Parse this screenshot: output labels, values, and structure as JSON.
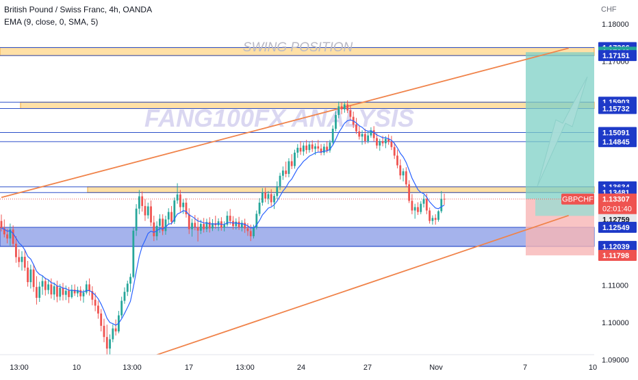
{
  "header": {
    "title": "British Pound / Swiss Franc, 4h, OANDA",
    "indicator": "EMA (9, close, 0, SMA, 5)"
  },
  "watermark": {
    "swing": "SWING POSITION",
    "brand": "FANG100FX ANALYSIS"
  },
  "colors": {
    "candle_up": "#26a69a",
    "candle_down": "#ef5350",
    "ema": "#2962ff",
    "channel": "#f0834a",
    "zone_fill": "#ffe0a6",
    "zone_border": "#f0b14f",
    "level_line": "#2a4ec9",
    "support_fill": "#5b74dd",
    "profit_fill": "#7dd0c5",
    "loss_fill": "#f7b5b5",
    "label_blue": "#1e3ac8",
    "label_green": "#26a69a",
    "label_red": "#ef5350",
    "watermark": "#c5c3e6"
  },
  "chart_data": {
    "type": "candlestick",
    "symbol": "GBPCHF",
    "timeframe": "4h",
    "y_axis": {
      "unit": "CHF",
      "range": [
        1.0855,
        1.1864
      ],
      "ticks": [
        "1.18000",
        "1.17000",
        "1.11000",
        "1.10000",
        "1.09000"
      ]
    },
    "x_axis": {
      "ticks": [
        "13:00",
        "10",
        "13:00",
        "17",
        "13:00",
        "24",
        "27",
        "Nov",
        "7",
        "10"
      ]
    },
    "levels": [
      {
        "value": 1.17366,
        "label": "1.17366",
        "style": "blue"
      },
      {
        "value": 1.17242,
        "label": "1.17242",
        "style": "green"
      },
      {
        "value": 1.17151,
        "label": "1.17151",
        "style": "blue"
      },
      {
        "value": 1.15903,
        "label": "1.15903",
        "style": "blue"
      },
      {
        "value": 1.15732,
        "label": "1.15732",
        "style": "blue"
      },
      {
        "value": 1.15091,
        "label": "1.15091",
        "style": "blue"
      },
      {
        "value": 1.14845,
        "label": "1.14845",
        "style": "blue"
      },
      {
        "value": 1.13634,
        "label": "1.13634",
        "style": "blue"
      },
      {
        "value": 1.13481,
        "label": "1.13481",
        "style": "blue"
      },
      {
        "value": 1.12759,
        "label": "1.12759",
        "style": "grey"
      },
      {
        "value": 1.12549,
        "label": "1.12549",
        "style": "blue"
      },
      {
        "value": 1.12039,
        "label": "1.12039",
        "style": "blue"
      },
      {
        "value": 1.11798,
        "label": "1.11798",
        "style": "red"
      }
    ],
    "current_price": {
      "symbol": "GBPCHF",
      "value": 1.13307,
      "label": "1.13307",
      "countdown": "02:01:40"
    },
    "zones": [
      {
        "type": "resistance",
        "from": 1.17151,
        "to": 1.17366
      },
      {
        "type": "resistance",
        "from": 1.15732,
        "to": 1.15903
      },
      {
        "type": "resistance",
        "from": 1.13481,
        "to": 1.13634
      },
      {
        "type": "support",
        "from": 1.12039,
        "to": 1.12549
      }
    ],
    "trade": {
      "direction": "long",
      "entry": 1.13307,
      "target": 1.17242,
      "stop": 1.11798
    },
    "channel": {
      "upper": {
        "from_bar": 0,
        "from_value": 1.1335,
        "to_bar": 178,
        "to_value": 1.1724
      },
      "lower": {
        "from_bar": 26,
        "from_value": 1.0855,
        "to_bar": 178,
        "to_value": 1.1272
      }
    },
    "candles": [
      [
        1.1272,
        1.1289,
        1.1244,
        1.1253
      ],
      [
        1.1253,
        1.1276,
        1.1228,
        1.1236
      ],
      [
        1.1236,
        1.125,
        1.1212,
        1.1225
      ],
      [
        1.1225,
        1.1265,
        1.1206,
        1.1249
      ],
      [
        1.1249,
        1.126,
        1.1202,
        1.1211
      ],
      [
        1.1211,
        1.1231,
        1.116,
        1.1175
      ],
      [
        1.1175,
        1.1196,
        1.1148,
        1.1162
      ],
      [
        1.1162,
        1.1191,
        1.1139,
        1.1176
      ],
      [
        1.1176,
        1.1195,
        1.1138,
        1.1147
      ],
      [
        1.1147,
        1.1165,
        1.1096,
        1.1108
      ],
      [
        1.1108,
        1.1155,
        1.1091,
        1.1142
      ],
      [
        1.1142,
        1.1156,
        1.1082,
        1.1095
      ],
      [
        1.1095,
        1.1124,
        1.1048,
        1.1066
      ],
      [
        1.1066,
        1.1109,
        1.1055,
        1.1096
      ],
      [
        1.1096,
        1.1126,
        1.1074,
        1.1111
      ],
      [
        1.1111,
        1.112,
        1.1072,
        1.1087
      ],
      [
        1.1087,
        1.1113,
        1.1076,
        1.1102
      ],
      [
        1.1102,
        1.1118,
        1.1064,
        1.1075
      ],
      [
        1.1075,
        1.1107,
        1.106,
        1.1097
      ],
      [
        1.1097,
        1.1112,
        1.1054,
        1.1069
      ],
      [
        1.1069,
        1.1103,
        1.1059,
        1.1093
      ],
      [
        1.1093,
        1.1106,
        1.1059,
        1.1074
      ],
      [
        1.1074,
        1.1099,
        1.106,
        1.1085
      ],
      [
        1.1085,
        1.1095,
        1.1052,
        1.1068
      ],
      [
        1.1068,
        1.1101,
        1.1064,
        1.1088
      ],
      [
        1.1088,
        1.1102,
        1.1071,
        1.1078
      ],
      [
        1.1078,
        1.1096,
        1.1068,
        1.1087
      ],
      [
        1.1087,
        1.1097,
        1.1058,
        1.107
      ],
      [
        1.107,
        1.1088,
        1.1053,
        1.108
      ],
      [
        1.108,
        1.1112,
        1.1075,
        1.1102
      ],
      [
        1.1102,
        1.1118,
        1.1072,
        1.1084
      ],
      [
        1.1084,
        1.1097,
        1.1046,
        1.1061
      ],
      [
        1.1061,
        1.108,
        1.103,
        1.1045
      ],
      [
        1.1045,
        1.1058,
        1.101,
        1.1024
      ],
      [
        1.1024,
        1.1036,
        1.0976,
        1.0991
      ],
      [
        1.0991,
        1.101,
        1.0947,
        1.0961
      ],
      [
        1.0961,
        1.0994,
        1.0905,
        1.093
      ],
      [
        1.093,
        1.0968,
        1.0914,
        1.0955
      ],
      [
        1.0955,
        1.0995,
        1.0947,
        1.0984
      ],
      [
        1.0984,
        1.1008,
        1.0965,
        1.0976
      ],
      [
        1.0976,
        1.1031,
        1.0971,
        1.1019
      ],
      [
        1.1019,
        1.1069,
        1.1012,
        1.1058
      ],
      [
        1.1058,
        1.1094,
        1.105,
        1.1082
      ],
      [
        1.1082,
        1.1112,
        1.1071,
        1.1104
      ],
      [
        1.1104,
        1.1131,
        1.1082,
        1.1122
      ],
      [
        1.1122,
        1.1254,
        1.1118,
        1.1246
      ],
      [
        1.1246,
        1.1317,
        1.1232,
        1.1305
      ],
      [
        1.1305,
        1.1355,
        1.129,
        1.1338
      ],
      [
        1.1338,
        1.1351,
        1.1297,
        1.1312
      ],
      [
        1.1312,
        1.133,
        1.1272,
        1.1287
      ],
      [
        1.1287,
        1.1321,
        1.1278,
        1.1311
      ],
      [
        1.1311,
        1.1327,
        1.1258,
        1.1268
      ],
      [
        1.1268,
        1.1286,
        1.1218,
        1.1231
      ],
      [
        1.1231,
        1.1271,
        1.122,
        1.1259
      ],
      [
        1.1259,
        1.129,
        1.124,
        1.1278
      ],
      [
        1.1278,
        1.129,
        1.1234,
        1.1245
      ],
      [
        1.1245,
        1.1286,
        1.1235,
        1.1276
      ],
      [
        1.1276,
        1.1306,
        1.1262,
        1.1296
      ],
      [
        1.1296,
        1.1312,
        1.1262,
        1.127
      ],
      [
        1.127,
        1.1335,
        1.1264,
        1.1327
      ],
      [
        1.1327,
        1.1373,
        1.1318,
        1.1343
      ],
      [
        1.1343,
        1.1355,
        1.1296,
        1.1309
      ],
      [
        1.1309,
        1.1331,
        1.1291,
        1.1321
      ],
      [
        1.1321,
        1.1333,
        1.1281,
        1.129
      ],
      [
        1.129,
        1.1306,
        1.1237,
        1.125
      ],
      [
        1.125,
        1.1278,
        1.123,
        1.1267
      ],
      [
        1.1267,
        1.1288,
        1.1247,
        1.1256
      ],
      [
        1.1256,
        1.1281,
        1.1217,
        1.1246
      ],
      [
        1.1246,
        1.1275,
        1.1237,
        1.1264
      ],
      [
        1.1264,
        1.128,
        1.1241,
        1.125
      ],
      [
        1.125,
        1.1278,
        1.1242,
        1.1269
      ],
      [
        1.1269,
        1.1282,
        1.1241,
        1.1252
      ],
      [
        1.1252,
        1.1277,
        1.1245,
        1.1266
      ],
      [
        1.1266,
        1.1286,
        1.1251,
        1.126
      ],
      [
        1.126,
        1.1279,
        1.1245,
        1.1271
      ],
      [
        1.1271,
        1.1282,
        1.1246,
        1.1254
      ],
      [
        1.1254,
        1.1271,
        1.1244,
        1.1262
      ],
      [
        1.1262,
        1.1298,
        1.1257,
        1.1286
      ],
      [
        1.1286,
        1.1304,
        1.1262,
        1.1272
      ],
      [
        1.1272,
        1.1285,
        1.1249,
        1.1258
      ],
      [
        1.1258,
        1.1279,
        1.1249,
        1.127
      ],
      [
        1.127,
        1.1283,
        1.1248,
        1.1255
      ],
      [
        1.1255,
        1.1274,
        1.1244,
        1.1267
      ],
      [
        1.1267,
        1.1278,
        1.124,
        1.1252
      ],
      [
        1.1252,
        1.1266,
        1.1232,
        1.1245
      ],
      [
        1.1245,
        1.1262,
        1.1218,
        1.1231
      ],
      [
        1.1231,
        1.1262,
        1.1225,
        1.1255
      ],
      [
        1.1255,
        1.13,
        1.1249,
        1.1291
      ],
      [
        1.1291,
        1.1333,
        1.1285,
        1.1321
      ],
      [
        1.1321,
        1.136,
        1.1313,
        1.1348
      ],
      [
        1.1348,
        1.1361,
        1.1322,
        1.1332
      ],
      [
        1.1332,
        1.1352,
        1.1317,
        1.1344
      ],
      [
        1.1344,
        1.1357,
        1.1312,
        1.1322
      ],
      [
        1.1322,
        1.1345,
        1.1304,
        1.1339
      ],
      [
        1.1339,
        1.1378,
        1.133,
        1.1365
      ],
      [
        1.1365,
        1.1401,
        1.1355,
        1.1393
      ],
      [
        1.1393,
        1.1418,
        1.1382,
        1.1407
      ],
      [
        1.1407,
        1.1431,
        1.1389,
        1.1398
      ],
      [
        1.1398,
        1.144,
        1.1389,
        1.1432
      ],
      [
        1.1432,
        1.1451,
        1.1411,
        1.1419
      ],
      [
        1.1419,
        1.1463,
        1.1412,
        1.1455
      ],
      [
        1.1455,
        1.1478,
        1.1441,
        1.1468
      ],
      [
        1.1468,
        1.1486,
        1.1449,
        1.1458
      ],
      [
        1.1458,
        1.1482,
        1.1447,
        1.1474
      ],
      [
        1.1474,
        1.1489,
        1.1452,
        1.1462
      ],
      [
        1.1462,
        1.1484,
        1.1455,
        1.1477
      ],
      [
        1.1477,
        1.1488,
        1.1457,
        1.1465
      ],
      [
        1.1465,
        1.148,
        1.1449,
        1.1472
      ],
      [
        1.1472,
        1.1489,
        1.1458,
        1.1466
      ],
      [
        1.1466,
        1.1478,
        1.1448,
        1.1455
      ],
      [
        1.1455,
        1.1479,
        1.1448,
        1.1471
      ],
      [
        1.1471,
        1.1486,
        1.1454,
        1.1461
      ],
      [
        1.1461,
        1.1489,
        1.1455,
        1.1482
      ],
      [
        1.1482,
        1.1528,
        1.1476,
        1.1519
      ],
      [
        1.1519,
        1.1566,
        1.1512,
        1.1556
      ],
      [
        1.1556,
        1.1592,
        1.1547,
        1.1579
      ],
      [
        1.1579,
        1.159,
        1.1558,
        1.1571
      ],
      [
        1.1571,
        1.1592,
        1.1562,
        1.1584
      ],
      [
        1.1584,
        1.1595,
        1.1561,
        1.1568
      ],
      [
        1.1568,
        1.1582,
        1.154,
        1.1551
      ],
      [
        1.1551,
        1.1565,
        1.1521,
        1.153
      ],
      [
        1.153,
        1.1548,
        1.1505,
        1.1512
      ],
      [
        1.1512,
        1.1527,
        1.149,
        1.1498
      ],
      [
        1.1498,
        1.1515,
        1.1476,
        1.1505
      ],
      [
        1.1505,
        1.1519,
        1.1478,
        1.1486
      ],
      [
        1.1486,
        1.1511,
        1.148,
        1.1501
      ],
      [
        1.1501,
        1.1523,
        1.1495,
        1.1515
      ],
      [
        1.1515,
        1.1526,
        1.1485,
        1.1494
      ],
      [
        1.1494,
        1.1507,
        1.1466,
        1.1474
      ],
      [
        1.1474,
        1.1492,
        1.146,
        1.1486
      ],
      [
        1.1486,
        1.15,
        1.1472,
        1.148
      ],
      [
        1.148,
        1.1499,
        1.1467,
        1.1492
      ],
      [
        1.1492,
        1.1504,
        1.1476,
        1.1484
      ],
      [
        1.1484,
        1.15,
        1.1462,
        1.147
      ],
      [
        1.147,
        1.1482,
        1.1438,
        1.1447
      ],
      [
        1.1447,
        1.1463,
        1.1413,
        1.1421
      ],
      [
        1.1421,
        1.1437,
        1.1383,
        1.1394
      ],
      [
        1.1394,
        1.1413,
        1.1378,
        1.1405
      ],
      [
        1.1405,
        1.1416,
        1.1362,
        1.137
      ],
      [
        1.137,
        1.1381,
        1.132,
        1.1326
      ],
      [
        1.1326,
        1.1344,
        1.129,
        1.13
      ],
      [
        1.13,
        1.1318,
        1.1278,
        1.1309
      ],
      [
        1.1309,
        1.1322,
        1.1288,
        1.1296
      ],
      [
        1.1296,
        1.1325,
        1.129,
        1.1318
      ],
      [
        1.1318,
        1.1342,
        1.1308,
        1.1331
      ],
      [
        1.1331,
        1.1345,
        1.129,
        1.13
      ],
      [
        1.13,
        1.1308,
        1.1265,
        1.1272
      ],
      [
        1.1272,
        1.1287,
        1.1262,
        1.128
      ],
      [
        1.128,
        1.129,
        1.1262,
        1.1275
      ],
      [
        1.1275,
        1.1301,
        1.127,
        1.1298
      ],
      [
        1.1298,
        1.1352,
        1.1293,
        1.1331
      ],
      [
        1.1331,
        1.1345,
        1.1315,
        1.133
      ]
    ]
  }
}
